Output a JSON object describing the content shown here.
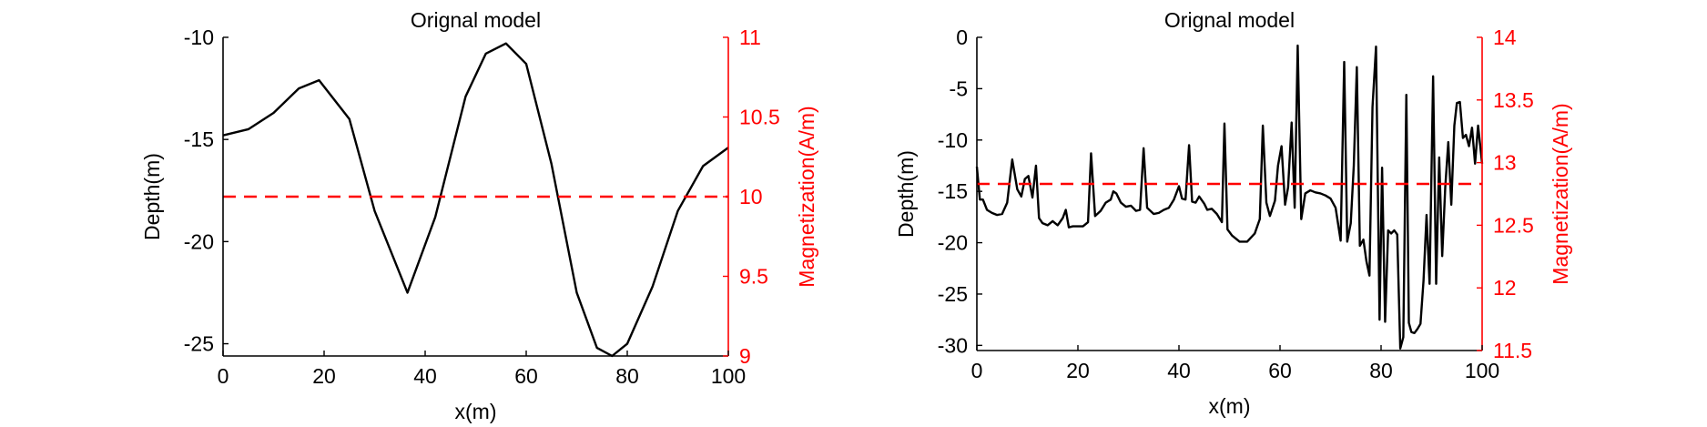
{
  "chart_data": [
    {
      "type": "line",
      "title": "Orignal model",
      "xlabel": "x(m)",
      "ylabel_left": "Depth(m)",
      "ylabel_right": "Magnetization(A/m)",
      "xlim": [
        0,
        100
      ],
      "ylim_left": [
        -25.6,
        -10
      ],
      "ylim_right": [
        9,
        11
      ],
      "xticks": [
        0,
        20,
        40,
        60,
        80,
        100
      ],
      "yticks_left": [
        -25,
        -20,
        -15,
        -10
      ],
      "yticks_right": [
        9,
        9.5,
        10,
        10.5,
        11
      ],
      "grid": false,
      "series": [
        {
          "axis": "left",
          "color": "#000000",
          "style": "solid",
          "x": [
            0,
            5,
            10,
            15,
            19,
            25,
            30,
            36.5,
            42,
            48,
            52,
            56,
            60,
            65,
            70,
            74,
            77,
            80,
            85,
            90,
            95,
            100
          ],
          "values": [
            -14.8,
            -14.5,
            -13.7,
            -12.5,
            -12.1,
            -14.0,
            -18.5,
            -22.5,
            -18.8,
            -12.9,
            -10.8,
            -10.3,
            -11.3,
            -16.2,
            -22.5,
            -25.2,
            -25.6,
            -25.0,
            -22.2,
            -18.5,
            -16.3,
            -15.4
          ]
        },
        {
          "axis": "right",
          "color": "#ff0000",
          "style": "dashed",
          "x": [
            0,
            100
          ],
          "values": [
            10,
            10
          ]
        }
      ]
    },
    {
      "type": "line",
      "title": "Orignal model",
      "xlabel": "x(m)",
      "ylabel_left": "Depth(m)",
      "ylabel_right": "Magnetization(A/m)",
      "xlim": [
        0,
        100
      ],
      "ylim_left": [
        -30.5,
        0
      ],
      "ylim_right": [
        11.5,
        14
      ],
      "xticks": [
        0,
        20,
        40,
        60,
        80,
        100
      ],
      "yticks_left": [
        -30,
        -25,
        -20,
        -15,
        -10,
        -5,
        0
      ],
      "yticks_right": [
        11.5,
        12,
        12.5,
        13,
        13.5,
        14
      ],
      "grid": false,
      "series": [
        {
          "axis": "left",
          "color": "#000000",
          "style": "solid",
          "x": [
            0,
            0.6,
            1.2,
            2,
            3,
            4,
            5,
            6,
            7,
            8,
            8.8,
            9.5,
            10.2,
            11,
            11.7,
            12.3,
            13,
            14,
            15,
            16,
            17,
            17.6,
            18.2,
            19,
            20,
            21,
            22,
            22.6,
            23.4,
            24.5,
            25.5,
            26.5,
            27,
            27.6,
            28.5,
            29.5,
            30.5,
            31.5,
            32.3,
            33,
            33.7,
            35,
            36,
            37,
            38,
            39,
            40,
            40.6,
            41.3,
            42,
            42.6,
            43.3,
            44,
            45,
            45.6,
            46.5,
            47.5,
            48.5,
            49,
            49.6,
            50.5,
            52,
            53.5,
            55,
            56,
            56.6,
            57.3,
            58,
            59,
            59.6,
            60.3,
            61,
            61.6,
            62.3,
            62.9,
            63.5,
            64.2,
            65,
            66,
            67,
            68,
            69,
            70,
            71,
            72,
            72.7,
            73.3,
            74,
            74.6,
            75.2,
            75.8,
            76.5,
            77.1,
            77.7,
            78.3,
            79,
            79.7,
            80.2,
            80.8,
            81.4,
            82,
            82.6,
            83.2,
            83.8,
            84.4,
            85,
            85.5,
            86,
            86.6,
            87.2,
            87.8,
            88.4,
            89,
            89.6,
            90.3,
            90.9,
            91.5,
            92.1,
            92.7,
            93.3,
            93.9,
            94.5,
            95,
            95.6,
            96.2,
            96.8,
            97.4,
            98,
            98.6,
            99.2,
            100
          ],
          "values": [
            -12.6,
            -15.8,
            -15.8,
            -16.8,
            -17.1,
            -17.3,
            -17.2,
            -16.1,
            -11.9,
            -14.8,
            -15.5,
            -13.8,
            -13.5,
            -15.6,
            -12.5,
            -17.6,
            -18.1,
            -18.3,
            -17.9,
            -18.3,
            -17.6,
            -16.8,
            -18.5,
            -18.4,
            -18.4,
            -18.4,
            -18.0,
            -11.3,
            -17.4,
            -16.9,
            -16.1,
            -15.8,
            -15.0,
            -15.2,
            -16.1,
            -16.5,
            -16.4,
            -16.9,
            -16.8,
            -10.8,
            -16.6,
            -17.2,
            -17.1,
            -16.8,
            -16.6,
            -15.8,
            -14.5,
            -15.7,
            -15.8,
            -10.5,
            -16.0,
            -16.1,
            -15.5,
            -16.2,
            -16.8,
            -16.7,
            -17.2,
            -18.0,
            -8.4,
            -18.7,
            -19.3,
            -19.9,
            -19.9,
            -19.1,
            -17.7,
            -8.6,
            -16.1,
            -17.4,
            -15.9,
            -12.5,
            -10.6,
            -16.3,
            -14.6,
            -8.3,
            -16.6,
            -0.8,
            -17.7,
            -15.2,
            -14.9,
            -15.1,
            -15.2,
            -15.4,
            -15.7,
            -16.6,
            -19.8,
            -2.4,
            -19.9,
            -18.1,
            -12.5,
            -2.9,
            -20.3,
            -19.7,
            -21.8,
            -23.2,
            -6.8,
            -0.9,
            -27.5,
            -12.7,
            -27.7,
            -18.8,
            -19.1,
            -18.8,
            -19.2,
            -30.3,
            -29.2,
            -5.6,
            -27.8,
            -28.7,
            -28.8,
            -28.4,
            -27.9,
            -23.7,
            -17.3,
            -24.0,
            -3.8,
            -24.0,
            -11.7,
            -21.3,
            -14.6,
            -10.2,
            -16.3,
            -8.6,
            -6.4,
            -6.3,
            -9.8,
            -9.5,
            -10.6,
            -8.8,
            -12.3,
            -8.6,
            -12.3
          ]
        },
        {
          "axis": "right",
          "color": "#ff0000",
          "style": "dashed",
          "x": [
            0,
            100
          ],
          "values": [
            12.83,
            12.83
          ]
        }
      ]
    }
  ]
}
